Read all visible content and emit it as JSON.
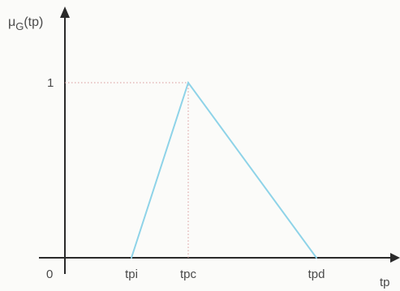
{
  "chart_data": {
    "type": "line",
    "title": "",
    "ylabel": {
      "base": "μ",
      "subscript": "G",
      "suffix": "(tp)"
    },
    "xlabel": "tp",
    "origin_label": "0",
    "x_ticks": [
      "tpi",
      "tpc",
      "tpd"
    ],
    "y_ticks": [
      {
        "label": "1",
        "value": 1
      }
    ],
    "ylim": [
      0,
      1.1
    ],
    "grid": false,
    "legend": "none",
    "series": [
      {
        "x": [
          "tpi",
          "tpc",
          "tpd"
        ],
        "y": [
          0,
          1,
          0
        ],
        "color": "#8ed3e8"
      }
    ],
    "guides": [
      {
        "from": "y-axis",
        "to_point": "tpc",
        "at_y": 1,
        "style": "dotted"
      },
      {
        "from": "x-axis",
        "to_point": "tpc",
        "at_y": 1,
        "style": "dotted"
      }
    ],
    "colors": {
      "axis": "#2a2a2a",
      "guide": "#d99a9a",
      "text": "#4a4a4a"
    }
  }
}
